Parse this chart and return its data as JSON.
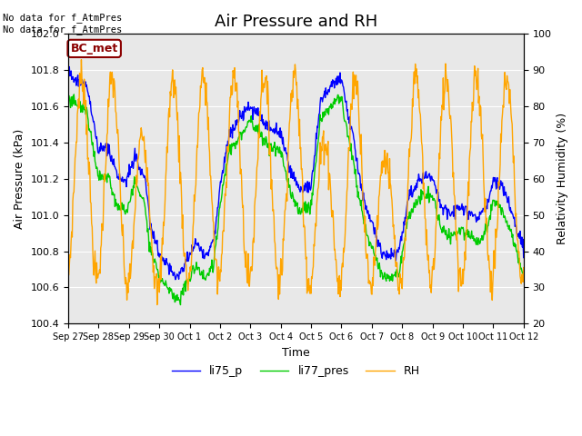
{
  "title": "Air Pressure and RH",
  "xlabel": "Time",
  "ylabel_left": "Air Pressure (kPa)",
  "ylabel_right": "Relativity Humidity (%)",
  "annotation_text": "No data for f_AtmPres\nNo data for f_AtmPres",
  "box_label": "BC_met",
  "ylim_left": [
    100.4,
    102.0
  ],
  "ylim_right": [
    20,
    100
  ],
  "yticks_left": [
    100.4,
    100.6,
    100.8,
    101.0,
    101.2,
    101.4,
    101.6,
    101.8,
    102.0
  ],
  "yticks_right": [
    20,
    30,
    40,
    50,
    60,
    70,
    80,
    90,
    100
  ],
  "legend_labels": [
    "li75_p",
    "li77_pres",
    "RH"
  ],
  "line_colors": [
    "blue",
    "#00cc00",
    "orange"
  ],
  "bg_color": "#e8e8e8",
  "title_fontsize": 13,
  "label_fontsize": 9,
  "tick_fontsize": 8,
  "num_points": 800,
  "xtick_labels": [
    "Sep 27",
    "Sep 28",
    "Sep 29",
    "Sep 30",
    "Oct 1",
    "Oct 2",
    "Oct 3",
    "Oct 4",
    "Oct 5",
    "Oct 6",
    "Oct 7",
    "Oct 8",
    "Oct 9",
    "Oct 10",
    "Oct 11",
    "Oct 12"
  ]
}
